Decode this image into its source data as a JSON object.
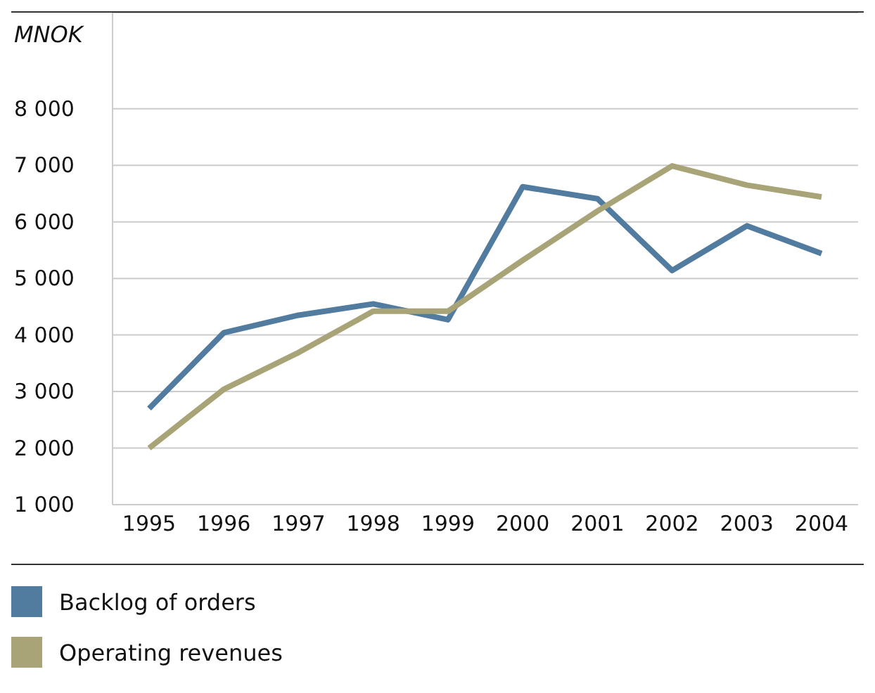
{
  "chart_data": {
    "type": "line",
    "ylabel": "MNOK",
    "categories": [
      "1995",
      "1996",
      "1997",
      "1998",
      "1999",
      "2000",
      "2001",
      "2002",
      "2003",
      "2004"
    ],
    "series": [
      {
        "name": "Backlog of orders",
        "color": "#527ba0",
        "values": [
          2700,
          4040,
          4350,
          4550,
          4270,
          6620,
          6410,
          5140,
          5930,
          5440
        ]
      },
      {
        "name": "Operating revenues",
        "color": "#a8a477",
        "values": [
          2000,
          3040,
          3690,
          4420,
          4420,
          5320,
          6190,
          6990,
          6650,
          6440
        ]
      }
    ],
    "ylim": [
      1000,
      9700
    ],
    "yticks": [
      {
        "value": 1000,
        "label": "1 000"
      },
      {
        "value": 2000,
        "label": "2 000"
      },
      {
        "value": 3000,
        "label": "3 000"
      },
      {
        "value": 4000,
        "label": "4 000"
      },
      {
        "value": 5000,
        "label": "5 000"
      },
      {
        "value": 6000,
        "label": "6 000"
      },
      {
        "value": 7000,
        "label": "7 000"
      },
      {
        "value": 8000,
        "label": "8 000"
      }
    ],
    "grid": "y",
    "legend": "bottom",
    "marker": "none",
    "line_style": "solid"
  }
}
